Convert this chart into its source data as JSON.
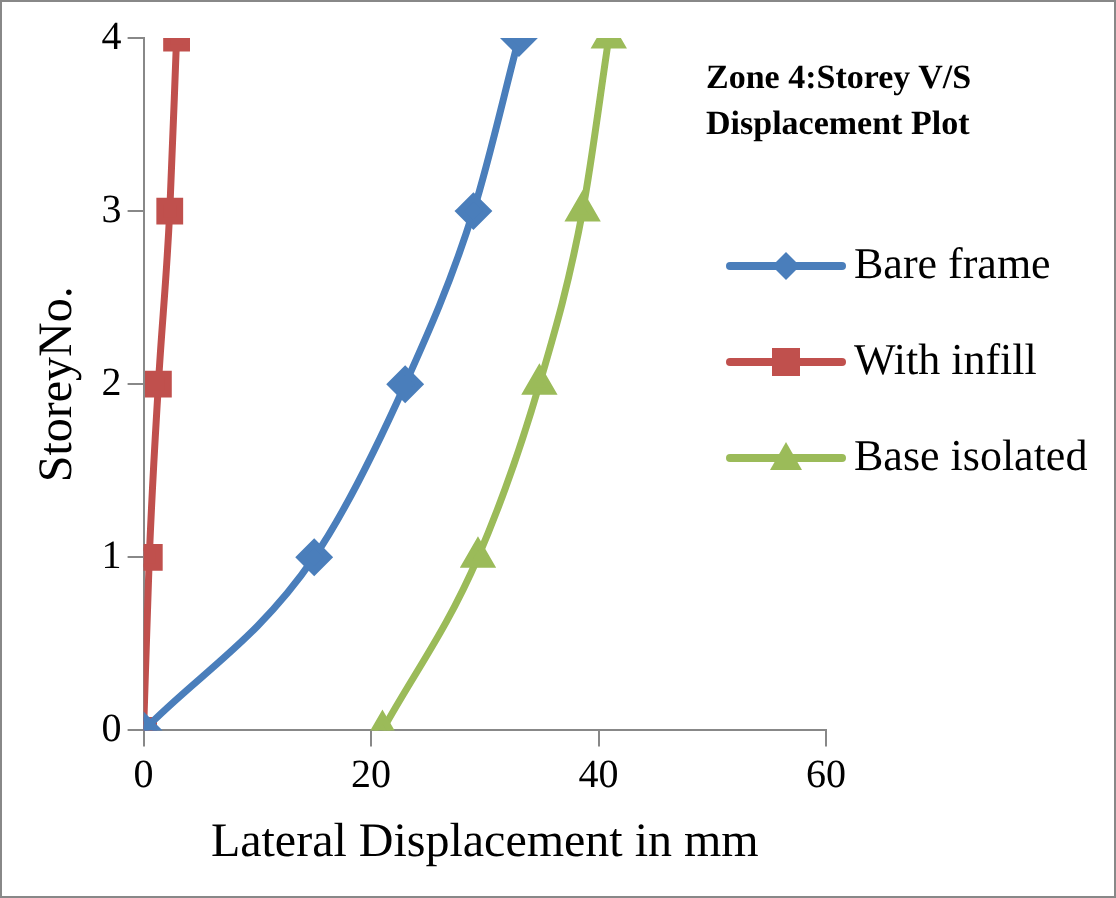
{
  "chart_data": {
    "type": "line",
    "title": "Zone 4:Storey V/S Displacement Plot",
    "xlabel": "Lateral Displacement in mm",
    "ylabel": "StoreyNo.",
    "xlim": [
      0,
      60
    ],
    "xticks": [
      0,
      20,
      40,
      60
    ],
    "ylim": [
      0,
      4
    ],
    "yticks": [
      0,
      1,
      2,
      3,
      4
    ],
    "grid": false,
    "legend": "right",
    "series": [
      {
        "name": "Bare frame",
        "color": "#4a7ebb",
        "marker": "diamond",
        "x": [
          0,
          15,
          23,
          29,
          33
        ],
        "values": [
          0,
          1,
          2,
          3,
          4
        ]
      },
      {
        "name": "With infill",
        "color": "#c0504d",
        "marker": "square",
        "x": [
          0,
          0.5,
          1.3,
          2.3,
          2.9
        ],
        "values": [
          0,
          1,
          2,
          3,
          4
        ]
      },
      {
        "name": "Base isolated",
        "color": "#9bbb59",
        "marker": "triangle",
        "x": [
          21,
          29.4,
          34.8,
          38.6,
          40.9
        ],
        "values": [
          0,
          1,
          2,
          3,
          4
        ]
      }
    ]
  }
}
